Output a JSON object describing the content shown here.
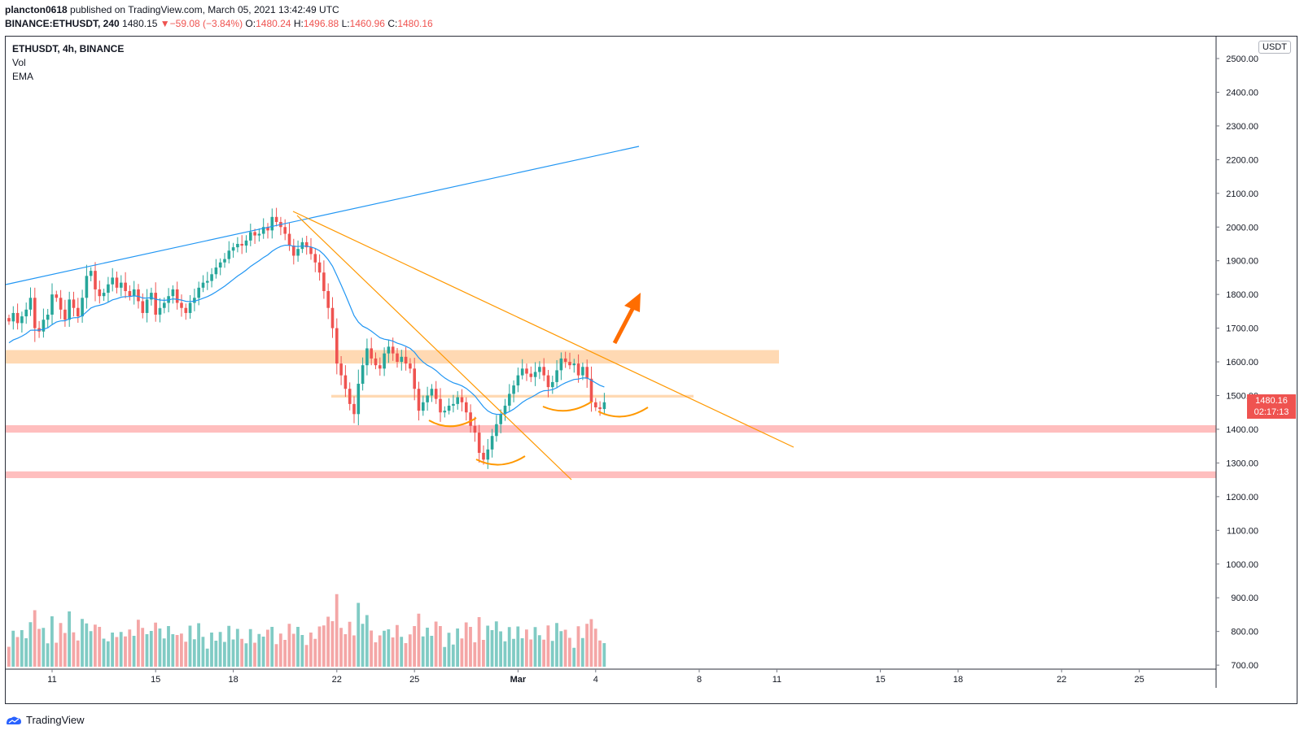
{
  "header": {
    "user": "plancton0618",
    "published": "published on TradingView.com, March 05, 2021 13:42:49 UTC",
    "symbol_full": "BINANCE:ETHUSDT, 240",
    "price": "1480.15",
    "change": "−59.08 (−3.84%)",
    "o_label": "O:",
    "o_val": "1480.24",
    "h_label": "H:",
    "h_val": "1496.88",
    "l_label": "L:",
    "l_val": "1460.96",
    "c_label": "C:",
    "c_val": "1480.16"
  },
  "legend": {
    "title": "ETHUSDT, 4h, BINANCE",
    "vol": "Vol",
    "ema": "EMA"
  },
  "currency": "USDT",
  "last_price": {
    "value": "1480.16",
    "countdown": "02:17:13"
  },
  "brand": "TradingView",
  "colors": {
    "up": "#26a69a",
    "down": "#ef5350",
    "ema": "#2196f3",
    "trend_orange": "#ff9800",
    "zone_orange": "#ffcc99",
    "zone_red": "#ffb3b3"
  },
  "chart_data": {
    "type": "candlestick",
    "y_ticks": [
      2500,
      2400,
      2300,
      2200,
      2100,
      2000,
      1900,
      1800,
      1700,
      1600,
      1500,
      1400,
      1300,
      1200,
      1100,
      1000,
      900,
      800,
      700
    ],
    "x_ticks": [
      {
        "label": "11",
        "bar": 10
      },
      {
        "label": "15",
        "bar": 34
      },
      {
        "label": "18",
        "bar": 52
      },
      {
        "label": "22",
        "bar": 76
      },
      {
        "label": "25",
        "bar": 94
      },
      {
        "label": "Mar",
        "bar": 118
      },
      {
        "label": "4",
        "bar": 136
      },
      {
        "label": "8",
        "bar": 160
      },
      {
        "label": "11",
        "bar": 178
      },
      {
        "label": "15",
        "bar": 202
      },
      {
        "label": "18",
        "bar": 220
      },
      {
        "label": "22",
        "bar": 244
      },
      {
        "label": "25",
        "bar": 262
      }
    ],
    "closes": [
      1720,
      1745,
      1715,
      1735,
      1755,
      1790,
      1700,
      1690,
      1725,
      1740,
      1800,
      1790,
      1755,
      1725,
      1785,
      1760,
      1735,
      1790,
      1855,
      1870,
      1815,
      1795,
      1805,
      1830,
      1850,
      1820,
      1835,
      1810,
      1795,
      1815,
      1780,
      1745,
      1785,
      1805,
      1740,
      1760,
      1775,
      1795,
      1815,
      1775,
      1760,
      1745,
      1775,
      1790,
      1820,
      1835,
      1840,
      1860,
      1880,
      1895,
      1905,
      1930,
      1940,
      1950,
      1945,
      1960,
      1985,
      1975,
      1980,
      2000,
      1990,
      2030,
      2015,
      2000,
      1980,
      1945,
      1915,
      1935,
      1955,
      1940,
      1920,
      1895,
      1865,
      1810,
      1760,
      1700,
      1595,
      1560,
      1520,
      1475,
      1445,
      1535,
      1590,
      1640,
      1610,
      1590,
      1580,
      1625,
      1645,
      1625,
      1600,
      1615,
      1595,
      1580,
      1520,
      1455,
      1480,
      1500,
      1520,
      1490,
      1450,
      1455,
      1470,
      1475,
      1495,
      1480,
      1450,
      1410,
      1390,
      1330,
      1310,
      1340,
      1380,
      1415,
      1445,
      1470,
      1505,
      1530,
      1560,
      1580,
      1565,
      1555,
      1570,
      1585,
      1560,
      1525,
      1540,
      1575,
      1610,
      1600,
      1590,
      1595,
      1560,
      1585,
      1550,
      1480,
      1465,
      1460,
      1480
    ],
    "ema_start": 1650,
    "volume_note": "volume bars shown in lower pane"
  }
}
